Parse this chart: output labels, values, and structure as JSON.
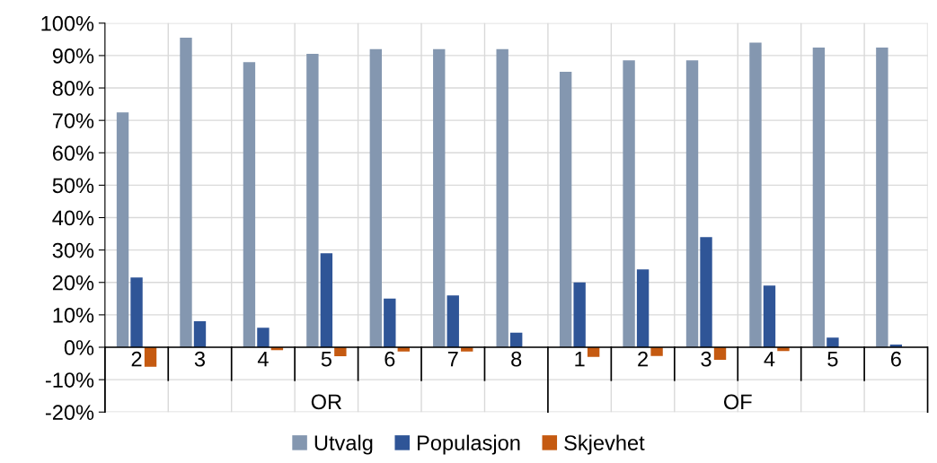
{
  "chart_data": {
    "type": "bar",
    "categories": [
      "2",
      "3",
      "4",
      "5",
      "6",
      "7",
      "8",
      "1",
      "2",
      "3",
      "4",
      "5",
      "6"
    ],
    "series": [
      {
        "name": "Utvalg",
        "color": "#8497b0",
        "values": [
          72.5,
          95.5,
          88,
          90.5,
          92,
          92,
          92,
          85,
          88.5,
          88.5,
          94,
          92.5,
          92.5
        ]
      },
      {
        "name": "Populasjon",
        "color": "#2f5597",
        "values": [
          21.5,
          8,
          6,
          29,
          15,
          16,
          4.5,
          20,
          24,
          34,
          19,
          3,
          0.8
        ]
      },
      {
        "name": "Skjevhet",
        "color": "#c55a11",
        "values": [
          -6,
          null,
          -0.9,
          -2.8,
          -1.3,
          -1.3,
          null,
          -3,
          -2.7,
          -3.9,
          -1.2,
          0,
          0
        ]
      }
    ],
    "annotations": [
      "OR",
      "OF"
    ],
    "ylim": [
      -20,
      100
    ],
    "yticks": [
      {
        "value": -20,
        "label": "-20%"
      },
      {
        "value": -10,
        "label": "-10%"
      },
      {
        "value": 0,
        "label": "0%"
      },
      {
        "value": 10,
        "label": "10%"
      },
      {
        "value": 20,
        "label": "20%"
      },
      {
        "value": 30,
        "label": "30%"
      },
      {
        "value": 40,
        "label": "40%"
      },
      {
        "value": 50,
        "label": "50%"
      },
      {
        "value": 60,
        "label": "60%"
      },
      {
        "value": 70,
        "label": "70%"
      },
      {
        "value": 80,
        "label": "80%"
      },
      {
        "value": 90,
        "label": "90%"
      },
      {
        "value": 100,
        "label": "100%"
      }
    ],
    "grid": true,
    "legend": "bottom"
  }
}
